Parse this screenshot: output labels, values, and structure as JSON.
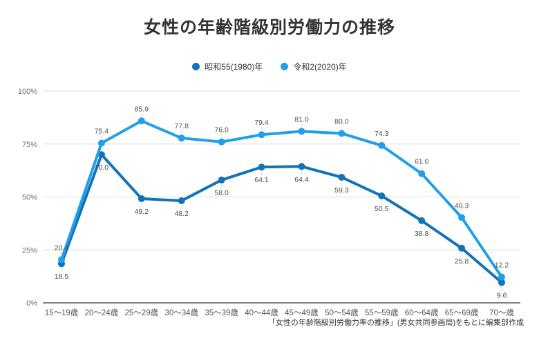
{
  "title": "女性の年齢階級別労働力の推移",
  "source_note": "「女性の年齢階級別労働力率の推移」(男女共同参画局)をもとに編集部作成",
  "colors": {
    "series_1980": "#1273b8",
    "series_2020": "#229fe8",
    "gridline": "#dddddd",
    "axis_line": "#555555",
    "tick_text": "#6b6b6b",
    "data_label_text": "#4d4d4d"
  },
  "chart_data": {
    "type": "line",
    "categories": [
      "15〜19歳",
      "20〜24歳",
      "25〜29歳",
      "30〜34歳",
      "35〜39歳",
      "40〜44歳",
      "45〜49歳",
      "50〜54歳",
      "55〜59歳",
      "60〜64歳",
      "65〜69歳",
      "70〜歳"
    ],
    "series": [
      {
        "name": "昭和55(1980)年",
        "color": "#1273b8",
        "label_position": "below",
        "values": [
          18.5,
          70.0,
          49.2,
          48.2,
          58.0,
          64.1,
          64.4,
          59.3,
          50.5,
          38.8,
          25.8,
          9.6
        ]
      },
      {
        "name": "令和2(2020)年",
        "color": "#229fe8",
        "label_position": "above",
        "values": [
          20.4,
          75.4,
          85.9,
          77.8,
          76.0,
          79.4,
          81.0,
          80.0,
          74.3,
          61.0,
          40.3,
          12.2
        ]
      }
    ],
    "title": "女性の年齢階級別労働力の推移",
    "xlabel": "",
    "ylabel": "",
    "ylim": [
      0,
      100
    ],
    "yticks": [
      0,
      25,
      50,
      75,
      100
    ],
    "ytick_suffix": "%",
    "grid": true,
    "legend_position": "top",
    "data_labels_decimals": 1
  }
}
